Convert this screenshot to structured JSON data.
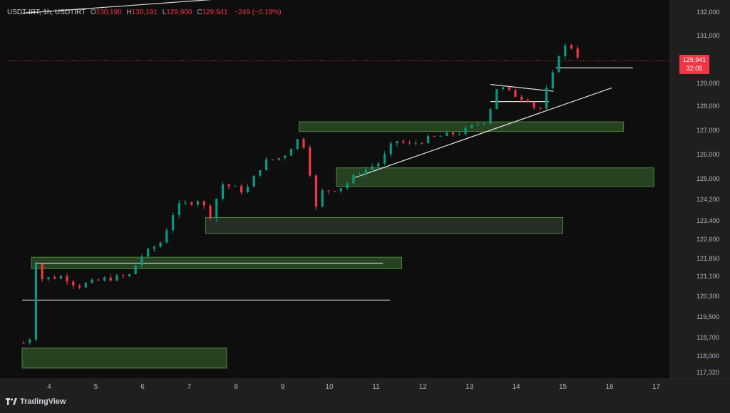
{
  "header": {
    "symbol": "USDT-IRT, 1h, USDTIRT",
    "open_label": "O",
    "open": "130,190",
    "high_label": "H",
    "high": "130,191",
    "low_label": "L",
    "low": "129,900",
    "close_label": "C",
    "close": "129,941",
    "change": "−249 (−0.19%)"
  },
  "current_price": {
    "value": "129,941",
    "countdown": "32:05"
  },
  "brand": {
    "name": "TradingView",
    "logo_icon": "tradingview-logo-icon"
  },
  "colors": {
    "up": "#089981",
    "down": "#f23645",
    "zone_fill": "#3b6e2f",
    "zone_stroke": "#5c9c44",
    "grey_zone": "#3a4a3a",
    "line": "#e0e0e0"
  },
  "chart_data": {
    "type": "candlestick",
    "y_ticks": [
      "132,000",
      "131,000",
      "129,000",
      "128,000",
      "127,000",
      "126,000",
      "125,000",
      "124,200",
      "123,400",
      "122,600",
      "121,850",
      "121,100",
      "120,300",
      "119,500",
      "118,700",
      "118,000",
      "117,320"
    ],
    "x_ticks": [
      "4",
      "5",
      "6",
      "7",
      "8",
      "9",
      "10",
      "11",
      "12",
      "13",
      "14",
      "15",
      "16",
      "17"
    ],
    "ylim": [
      117000,
      132300
    ],
    "x_range": [
      3.4,
      17.5
    ],
    "last_price": 129941,
    "zones": [
      {
        "x0": 3.42,
        "x1": 7.8,
        "y0": 117500,
        "y1": 118300,
        "style": "green"
      },
      {
        "x0": 3.62,
        "x1": 11.55,
        "y0": 121420,
        "y1": 121900,
        "style": "green"
      },
      {
        "x0": 7.35,
        "x1": 15.0,
        "y0": 122850,
        "y1": 123520,
        "style": "grey"
      },
      {
        "x0": 10.15,
        "x1": 16.95,
        "y0": 124700,
        "y1": 125450,
        "style": "green"
      },
      {
        "x0": 9.35,
        "x1": 16.3,
        "y0": 126950,
        "y1": 127350,
        "style": "green"
      }
    ],
    "lines": [
      {
        "x0": 3.42,
        "y0": 120150,
        "x1": 11.3,
        "y1": 120150
      },
      {
        "x0": 3.7,
        "y0": 121650,
        "x1": 11.15,
        "y1": 121650
      },
      {
        "x0": 10.55,
        "y0": 125050,
        "x1": 16.05,
        "y1": 128800
      },
      {
        "x0": 13.45,
        "y0": 128950,
        "x1": 14.8,
        "y1": 128650
      },
      {
        "x0": 13.45,
        "y0": 128200,
        "x1": 14.7,
        "y1": 128200
      },
      {
        "x0": 14.85,
        "y0": 129650,
        "x1": 16.5,
        "y1": 129650
      },
      {
        "x0": 3.42,
        "y0": 131950,
        "x1": 7.6,
        "y1": 132550
      }
    ],
    "anchors": [
      [
        3.45,
        118500
      ],
      [
        3.6,
        118700
      ],
      [
        3.7,
        121800
      ],
      [
        3.85,
        121000
      ],
      [
        4.3,
        121100
      ],
      [
        4.6,
        120700
      ],
      [
        5.2,
        121000
      ],
      [
        5.7,
        121100
      ],
      [
        5.95,
        121900
      ],
      [
        6.4,
        122500
      ],
      [
        6.7,
        123900
      ],
      [
        7.2,
        124200
      ],
      [
        7.45,
        123600
      ],
      [
        7.7,
        124800
      ],
      [
        8.2,
        124500
      ],
      [
        8.6,
        125700
      ],
      [
        9.0,
        125900
      ],
      [
        9.4,
        126800
      ],
      [
        9.6,
        125100
      ],
      [
        9.7,
        123800
      ],
      [
        9.85,
        124500
      ],
      [
        10.3,
        124700
      ],
      [
        10.6,
        125200
      ],
      [
        11.1,
        125700
      ],
      [
        11.4,
        126600
      ],
      [
        11.7,
        126400
      ],
      [
        12.2,
        126700
      ],
      [
        12.8,
        126900
      ],
      [
        13.1,
        127200
      ],
      [
        13.35,
        127400
      ],
      [
        13.5,
        128200
      ],
      [
        13.6,
        128900
      ],
      [
        14.0,
        128450
      ],
      [
        14.35,
        128200
      ],
      [
        14.45,
        127500
      ],
      [
        14.65,
        128700
      ],
      [
        14.85,
        129700
      ],
      [
        14.95,
        130500
      ],
      [
        15.15,
        130600
      ],
      [
        15.4,
        129941
      ]
    ],
    "candles_per_unit": 24,
    "volatility": 140,
    "seed": 7
  }
}
